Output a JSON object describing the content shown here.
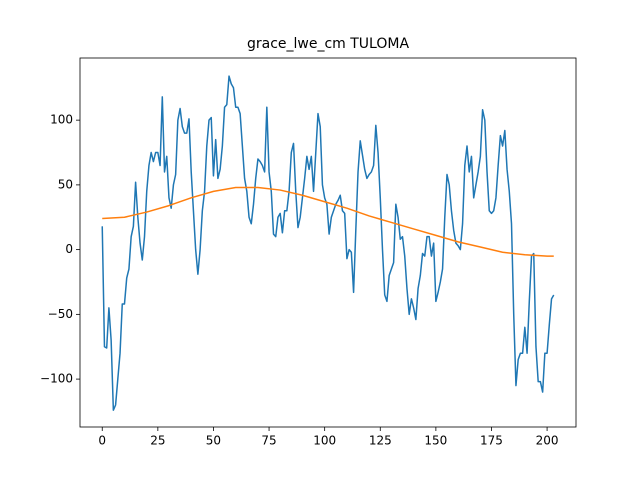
{
  "chart_data": {
    "type": "line",
    "title": "grace_lwe_cm TULOMA",
    "xlim": [
      -10,
      213
    ],
    "ylim": [
      -137,
      148
    ],
    "xticks": [
      0,
      25,
      50,
      75,
      100,
      125,
      150,
      175,
      200
    ],
    "yticks": [
      {
        "value": -100,
        "label": "−100"
      },
      {
        "value": -50,
        "label": "−50"
      },
      0,
      50,
      100
    ],
    "grid": false,
    "series": [
      {
        "color": "#1f77b4",
        "x": [
          0,
          1,
          2,
          3,
          4,
          5,
          6,
          7,
          8,
          9,
          10,
          11,
          12,
          13,
          14,
          15,
          16,
          17,
          18,
          19,
          20,
          21,
          22,
          23,
          24,
          25,
          26,
          27,
          28,
          29,
          30,
          31,
          32,
          33,
          34,
          35,
          36,
          37,
          38,
          39,
          40,
          41,
          42,
          43,
          44,
          45,
          46,
          47,
          48,
          49,
          50,
          51,
          52,
          53,
          54,
          55,
          56,
          57,
          58,
          59,
          60,
          61,
          62,
          63,
          64,
          65,
          66,
          67,
          68,
          69,
          70,
          71,
          72,
          73,
          74,
          75,
          76,
          77,
          78,
          79,
          80,
          81,
          82,
          83,
          84,
          85,
          86,
          87,
          88,
          89,
          90,
          91,
          92,
          93,
          94,
          95,
          96,
          97,
          98,
          99,
          100,
          101,
          102,
          103,
          104,
          105,
          106,
          107,
          108,
          109,
          110,
          111,
          112,
          113,
          114,
          115,
          116,
          117,
          118,
          119,
          120,
          121,
          122,
          123,
          124,
          125,
          126,
          127,
          128,
          129,
          130,
          131,
          132,
          133,
          134,
          135,
          136,
          137,
          138,
          139,
          140,
          141,
          142,
          143,
          144,
          145,
          146,
          147,
          148,
          149,
          150,
          151,
          152,
          153,
          154,
          155,
          156,
          157,
          158,
          159,
          160,
          161,
          162,
          163,
          164,
          165,
          166,
          167,
          168,
          169,
          170,
          171,
          172,
          173,
          174,
          175,
          176,
          177,
          178,
          179,
          180,
          181,
          182,
          183,
          184,
          185,
          186,
          187,
          188,
          189,
          190,
          191,
          192,
          193,
          194,
          195,
          196,
          197,
          198,
          199,
          200,
          201,
          202,
          203
        ],
        "values": [
          18,
          -75,
          -76,
          -45,
          -70,
          -124,
          -120,
          -100,
          -80,
          -42,
          -42,
          -22,
          -15,
          10,
          18,
          52,
          25,
          5,
          -8,
          10,
          45,
          65,
          75,
          68,
          75,
          75,
          65,
          118,
          60,
          72,
          40,
          32,
          50,
          58,
          100,
          109,
          95,
          90,
          90,
          101,
          60,
          30,
          0,
          -19,
          0,
          30,
          45,
          80,
          100,
          102,
          57,
          85,
          55,
          62,
          80,
          110,
          112,
          134,
          128,
          125,
          110,
          110,
          105,
          80,
          55,
          45,
          25,
          20,
          35,
          55,
          70,
          68,
          65,
          60,
          110,
          60,
          45,
          12,
          10,
          25,
          28,
          13,
          30,
          30,
          45,
          75,
          82,
          45,
          17,
          25,
          40,
          55,
          72,
          62,
          72,
          45,
          75,
          105,
          95,
          50,
          40,
          35,
          12,
          25,
          30,
          35,
          38,
          42,
          30,
          28,
          -7,
          0,
          -2,
          -33,
          15,
          60,
          84,
          73,
          62,
          55,
          58,
          60,
          65,
          96,
          75,
          40,
          0,
          -35,
          -40,
          -20,
          -15,
          -10,
          35,
          25,
          8,
          10,
          -5,
          -30,
          -50,
          -38,
          -45,
          -54,
          -30,
          -20,
          -3,
          -5,
          10,
          10,
          -5,
          5,
          -40,
          -33,
          -25,
          -15,
          25,
          58,
          50,
          30,
          15,
          5,
          3,
          0,
          20,
          65,
          80,
          60,
          72,
          40,
          50,
          60,
          72,
          108,
          100,
          60,
          30,
          28,
          30,
          40,
          65,
          88,
          80,
          92,
          62,
          45,
          20,
          -50,
          -105,
          -85,
          -80,
          -80,
          -60,
          -80,
          -40,
          -5,
          -3,
          -75,
          -102,
          -102,
          -110,
          -80,
          -80,
          -58,
          -38,
          -35
        ]
      },
      {
        "color": "#ff7f0e",
        "x": [
          0,
          10,
          20,
          30,
          40,
          50,
          60,
          70,
          80,
          90,
          100,
          110,
          120,
          130,
          140,
          150,
          160,
          170,
          180,
          190,
          200,
          203
        ],
        "values": [
          24,
          25,
          29,
          34,
          40,
          45,
          48,
          48,
          46,
          42,
          37,
          32,
          26,
          21,
          16,
          11,
          6,
          2,
          -2,
          -4,
          -5,
          -5
        ]
      }
    ]
  }
}
